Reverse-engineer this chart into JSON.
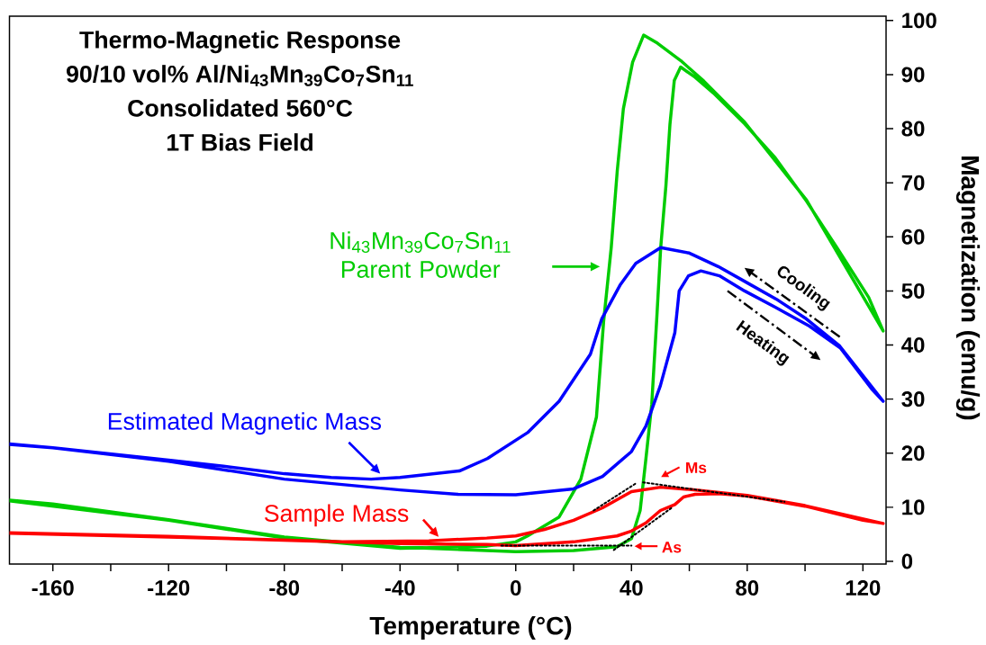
{
  "chart_data": {
    "type": "line",
    "title": "Thermo-Magnetic Response",
    "subtitle": "90/10 vol% Al/Ni$_{43}$Mn$_{39}$Co$_{7}$Sn$_{11}$",
    "xlabel": "Temperature (°C)",
    "ylabel": "Magnetization (emu/g)",
    "annotations": [
      "Consolidated 560°C",
      "1T Bias Field",
      "Cooling",
      "Heating",
      "Ms",
      "As"
    ],
    "xlim": [
      -175,
      128
    ],
    "ylim": [
      -0.5,
      100.8
    ],
    "xticks": [
      -160,
      {
        "value": -140,
        "label": null
      },
      -120,
      {
        "value": -100,
        "label": null
      },
      -80,
      {
        "value": -60,
        "label": null
      },
      -40,
      {
        "value": -20,
        "label": null
      },
      0,
      {
        "value": 20,
        "label": null
      },
      40,
      {
        "value": 60,
        "label": null
      },
      80,
      {
        "value": 100,
        "label": null
      },
      120
    ],
    "yticks": [
      0,
      10,
      20,
      30,
      40,
      50,
      60,
      70,
      80,
      90,
      100
    ],
    "series": [
      {
        "name": "Ni$_{43}$Mn$_{39}$Co$_{7}$Sn$_{11}$ Parent Powder",
        "color": "#00cc00",
        "x": [
          -175,
          -160,
          -120,
          -80,
          -40,
          0,
          20,
          35,
          40,
          43,
          45,
          47,
          48.7,
          50.1,
          51.9,
          53.3,
          54.8,
          57,
          62,
          68.3,
          79.1,
          89.7,
          100.5,
          111,
          122,
          127,
          100.5,
          79.1,
          65,
          57,
          49,
          44.2,
          40.4,
          37.2,
          35.1,
          33,
          30.4,
          27.9,
          22.5,
          15,
          4.1,
          0,
          -10,
          -40,
          -80,
          -120,
          -175
        ],
        "values": [
          11.3,
          10.6,
          7.7,
          4.5,
          2.6,
          1.8,
          2.0,
          2.7,
          4.2,
          9.4,
          19,
          29,
          44.5,
          58,
          69.4,
          80.8,
          88.9,
          91.4,
          89.5,
          86.6,
          80.9,
          74.6,
          66.6,
          58,
          48.8,
          42.6,
          66.8,
          81.2,
          88.8,
          92.6,
          95.8,
          97.3,
          92.3,
          83.7,
          72.3,
          58,
          44.5,
          26.7,
          15.2,
          8.2,
          4.7,
          3.6,
          2.8,
          2.4,
          4.3,
          7.6,
          11.2
        ]
      },
      {
        "name": "Estimated Magnetic Mass",
        "color": "#0000ff",
        "x": [
          -175,
          -160,
          -120,
          -80,
          -40,
          -20,
          0,
          20,
          30,
          40,
          45,
          50,
          55,
          56.5,
          59.7,
          64,
          70.4,
          79.1,
          89.7,
          101.5,
          112.3,
          123,
          127,
          112,
          100,
          90,
          80,
          70,
          60,
          50.1,
          41.5,
          36.2,
          29.7,
          25.8,
          15,
          4.1,
          -9.8,
          -19.5,
          -40,
          -50,
          -63.8,
          -80,
          -101,
          -120,
          -160,
          -175
        ],
        "values": [
          21.6,
          21,
          18.5,
          15.2,
          13.2,
          12.4,
          12.3,
          13.4,
          15.7,
          20.3,
          25,
          32.5,
          42.3,
          50,
          52.8,
          53.7,
          52.8,
          50,
          47,
          43.5,
          39.4,
          31.9,
          29.6,
          39.8,
          45,
          48.5,
          51.5,
          54.5,
          57,
          58,
          55.1,
          51.2,
          44.8,
          38.3,
          29.6,
          23.8,
          19,
          16.7,
          15.5,
          15.2,
          15.5,
          16.2,
          17.6,
          18.7,
          21,
          21.7
        ]
      },
      {
        "name": "Sample Mass",
        "color": "#ff0000",
        "x": [
          -175,
          -120,
          -80,
          -40,
          -10,
          0,
          20,
          35,
          40,
          45,
          50,
          55,
          58,
          62,
          70,
          80,
          100,
          120,
          127,
          100,
          80,
          60,
          50,
          40,
          30,
          20,
          10,
          0,
          -10,
          -30,
          -60,
          -120,
          -175
        ],
        "values": [
          5.2,
          4.5,
          3.9,
          3.3,
          3.1,
          2.9,
          3.6,
          4.7,
          5.6,
          7.1,
          9.4,
          10.5,
          11.9,
          12.4,
          12.5,
          12.1,
          10.2,
          7.6,
          7.0,
          10.3,
          12.2,
          13.3,
          13.7,
          12.9,
          9.9,
          7.6,
          5.9,
          4.7,
          4.3,
          3.8,
          3.6,
          4.6,
          5.3
        ]
      },
      {
        "color": "#000000",
        "line_style": "dotted",
        "x": [
          26.9,
          41.5
        ],
        "values": [
          9.4,
          14.4
        ]
      },
      {
        "color": "#000000",
        "line_style": "dotted",
        "x": [
          44,
          92.9
        ],
        "values": [
          14.6,
          11.0
        ]
      },
      {
        "color": "#000000",
        "line_style": "dotted",
        "x": [
          -5,
          40
        ],
        "values": [
          2.9,
          2.9
        ]
      },
      {
        "color": "#000000",
        "line_style": "dotted",
        "x": [
          33.9,
          53.9
        ],
        "values": [
          2.1,
          9.9
        ]
      }
    ]
  }
}
